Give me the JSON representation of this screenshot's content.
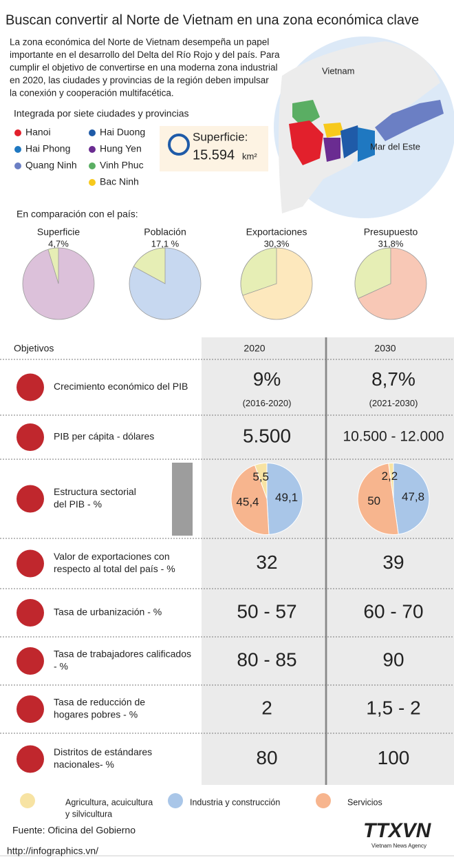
{
  "title": "Buscan convertir al Norte de Vietnam en una zona económica clave",
  "intro": [
    "La zona económica del Norte de Vietnam desempeña un papel",
    "importante en el desarrollo del Delta del Río Rojo y del país. Para",
    "cumplir el objetivo de convertirse en una moderna zona industrial",
    "en 2020, las ciudades y provincias de la región deben impulsar",
    "la conexión y cooperación multifacética."
  ],
  "provinces": {
    "heading": "Integrada por siete ciudades y provincias",
    "items": [
      {
        "name": "Hanoi",
        "color": "#e2202c"
      },
      {
        "name": "Hai Phong",
        "color": "#1f78c1"
      },
      {
        "name": "Quang Ninh",
        "color": "#6b7fc4"
      },
      {
        "name": "Hai Duong",
        "color": "#1f5ba8"
      },
      {
        "name": "Hung Yen",
        "color": "#6a2c91"
      },
      {
        "name": "Vinh Phuc",
        "color": "#5aae63"
      },
      {
        "name": "Bac Ninh",
        "color": "#f7c91c"
      }
    ]
  },
  "area": {
    "label": "Superficie:",
    "value": "15.594",
    "unit": "km²"
  },
  "map": {
    "labels": [
      "Vietnam",
      "Mar del Este"
    ]
  },
  "comparison": {
    "heading": "En comparación con el país:",
    "share_color": "#e6eeb5",
    "items": [
      {
        "label": "Superficie",
        "value": 4.7,
        "value_label": "4,7%",
        "color": "#dcc1da"
      },
      {
        "label": "Población",
        "value": 17.1,
        "value_label": "17,1 %",
        "color": "#c7d8f0"
      },
      {
        "label": "Exportaciones",
        "value": 30.3,
        "value_label": "30,3%",
        "color": "#fde8bd"
      },
      {
        "label": "Presupuesto",
        "value": 31.8,
        "value_label": "31,8%",
        "color": "#f8c8b6"
      }
    ]
  },
  "objectives": {
    "header": [
      "Objetivos",
      "2020",
      "2030"
    ],
    "rows": [
      {
        "label": [
          "Crecimiento económico del PIB"
        ],
        "cells": [
          [
            "9%",
            "(2016-2020)"
          ],
          [
            "8,7%",
            "(2021-2030)"
          ]
        ]
      },
      {
        "label": [
          "PIB per cápita - dólares"
        ],
        "cells": [
          [
            "5.500"
          ],
          [
            "10.500 - 12.000"
          ]
        ]
      },
      {
        "label": [
          "Estructura sectorial",
          "del PIB - %"
        ],
        "pies": [
          {
            "values": [
              5.5,
              49.1,
              45.4
            ],
            "value_labels": [
              "5,5",
              "49,1",
              "45,4"
            ]
          },
          {
            "values": [
              2.2,
              47.8,
              50
            ],
            "value_labels": [
              "2,2",
              "47,8",
              "50"
            ]
          }
        ]
      },
      {
        "label": [
          "Valor de exportaciones con",
          "respecto al total del país - %"
        ],
        "cells": [
          [
            "32"
          ],
          [
            "39"
          ]
        ]
      },
      {
        "label": [
          "Tasa de urbanización - %"
        ],
        "cells": [
          [
            "50 - 57"
          ],
          [
            "60 - 70"
          ]
        ]
      },
      {
        "label": [
          "Tasa de trabajadores calificados",
          "- %"
        ],
        "cells": [
          [
            "80 - 85"
          ],
          [
            "90"
          ]
        ]
      },
      {
        "label": [
          "Tasa de reducción de",
          "hogares pobres - %"
        ],
        "cells": [
          [
            "2"
          ],
          [
            "1,5 - 2"
          ]
        ]
      },
      {
        "label": [
          "Distritos de estándares",
          "nacionales- %"
        ],
        "cells": [
          [
            "80"
          ],
          [
            "100"
          ]
        ]
      }
    ]
  },
  "sectors": [
    {
      "name": [
        "Agricultura, acuicultura",
        "y silvicultura"
      ],
      "color": "#f7e3a3"
    },
    {
      "name": [
        "Industria y construcción"
      ],
      "color": "#a9c6e8"
    },
    {
      "name": [
        "Servicios"
      ],
      "color": "#f7b58e"
    }
  ],
  "source": "Fuente: Oficina del Gobierno",
  "url": "http://infographics.vn/",
  "logo": {
    "name": "TTXVN",
    "subtitle": "Vietnam News Agency"
  }
}
